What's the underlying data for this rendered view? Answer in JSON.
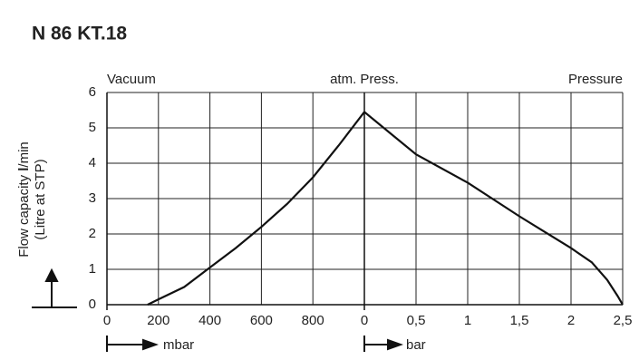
{
  "chart_data": {
    "type": "line",
    "title": "N 86 KT.18",
    "color": "#111111",
    "y_label": [
      "Flow capacity ",
      "l",
      "/min"
    ],
    "y_label_2": "(Litre at STP)",
    "center_header": "atm. Press.",
    "ylim": [
      0,
      6
    ],
    "yticks": [
      0,
      1,
      2,
      3,
      4,
      5,
      6
    ],
    "grid": true,
    "left": {
      "header": "Vacuum",
      "x_label": "mbar",
      "xlim": [
        0,
        1000
      ],
      "xticks": [
        0,
        200,
        400,
        600,
        800
      ],
      "x": [
        158,
        200,
        300,
        400,
        500,
        600,
        700,
        800,
        900,
        1000
      ],
      "values": [
        0,
        0.15,
        0.5,
        1.05,
        1.6,
        2.2,
        2.85,
        3.6,
        4.5,
        5.45
      ]
    },
    "right": {
      "header": "Pressure",
      "x_label": "bar",
      "xlim": [
        0,
        2.5
      ],
      "xticks": [
        0,
        {
          "value": 0.5,
          "label": "0,5"
        },
        1,
        {
          "value": 1.5,
          "label": "1,5"
        },
        2,
        {
          "value": 2.5,
          "label": "2,5"
        }
      ],
      "x": [
        0,
        0.25,
        0.5,
        1,
        1.5,
        2,
        2.2,
        2.35,
        2.45,
        2.5
      ],
      "values": [
        5.45,
        4.85,
        4.25,
        3.45,
        2.5,
        1.6,
        1.2,
        0.7,
        0.25,
        0
      ]
    }
  }
}
